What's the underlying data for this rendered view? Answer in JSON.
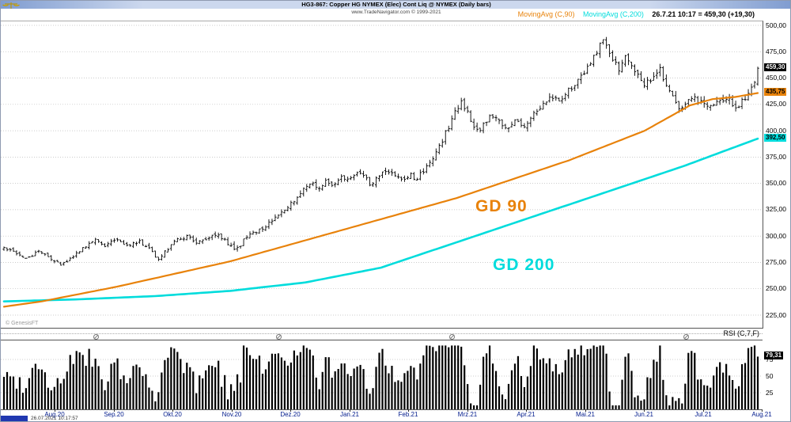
{
  "window": {
    "title": "HG3-867:  Copper HG NYMEX (Elec) Cont Liq @ NYMEX  (Daily bars)",
    "subtitle": "www.TradeNavigator.com © 1999-2021",
    "timestamp": "26.07.2021 10:17:57",
    "watermark": "© GenesisFT"
  },
  "legend": {
    "ma90_label": "MovingAvg (C,90)",
    "ma200_label": "MovingAvg (C,200)",
    "quote": "26.7.21 10:17 = 459,30  (+19,30)"
  },
  "annotations": {
    "gd90": "GD 90",
    "gd200": "GD 200"
  },
  "price_axis": {
    "labels": [
      "500,00",
      "475,00",
      "450,00",
      "425,00",
      "400,00",
      "375,00",
      "350,00",
      "325,00",
      "300,00",
      "275,00",
      "250,00",
      "225,00"
    ],
    "values": [
      500,
      475,
      450,
      425,
      400,
      375,
      350,
      325,
      300,
      275,
      250,
      225
    ],
    "last_price_label": "459,30",
    "ma90_price_label": "435,75",
    "ma200_price_label": "392,50"
  },
  "rsi": {
    "label": "RSI (C,7,F)",
    "axis_labels": [
      "75",
      "50",
      "25"
    ],
    "axis_values": [
      75,
      50,
      25
    ],
    "current_label": "79,31",
    "current_value": 79.31
  },
  "x_axis": {
    "labels": [
      "Aug.20",
      "Sep.20",
      "Okt.20",
      "Nov.20",
      "Dez.20",
      "Jan.21",
      "Feb.21",
      "Mrz.21",
      "Apr.21",
      "Mai.21",
      "Jun.21",
      "Jul.21",
      "Aug.21"
    ]
  },
  "colors": {
    "bars": "#000000",
    "ma90": "#e8820a",
    "ma200": "#00dcdc",
    "grid": "#bcbcbc",
    "last_box_bg": "#000000",
    "last_box_text": "#ffffff",
    "month_label": "#001a8c"
  },
  "chart_data": {
    "type": "ohlc-bar-with-overlays",
    "title": "Copper HG NYMEX (Elec) Cont Liq @ NYMEX, Daily bars",
    "x_range": [
      "Aug.20",
      "Aug.21"
    ],
    "price_axis_range": [
      225,
      500
    ],
    "bar_count": 240,
    "last_bar": {
      "date": "26.7.21 10:17",
      "close": 459.3,
      "change": 19.3
    },
    "series": [
      {
        "name": "Copper HG NYMEX daily OHLC",
        "type": "ohlc",
        "color": "#000000",
        "last": 459.3
      },
      {
        "name": "MovingAvg (C,90)",
        "type": "line",
        "color": "#e8820a",
        "last": 435.75
      },
      {
        "name": "MovingAvg (C,200)",
        "type": "line",
        "color": "#00dcdc",
        "last": 392.5
      },
      {
        "name": "RSI (C,7,F)",
        "type": "histogram",
        "range": [
          0,
          100
        ],
        "grid": [
          25,
          50,
          75
        ],
        "last": 79.31
      }
    ],
    "close_keypoints": [
      [
        0,
        288
      ],
      [
        0.015,
        284
      ],
      [
        0.03,
        278
      ],
      [
        0.045,
        286
      ],
      [
        0.06,
        280
      ],
      [
        0.075,
        272
      ],
      [
        0.09,
        279
      ],
      [
        0.105,
        288
      ],
      [
        0.12,
        296
      ],
      [
        0.135,
        291
      ],
      [
        0.15,
        298
      ],
      [
        0.165,
        290
      ],
      [
        0.18,
        295
      ],
      [
        0.193,
        287
      ],
      [
        0.205,
        278
      ],
      [
        0.218,
        289
      ],
      [
        0.23,
        296
      ],
      [
        0.243,
        300
      ],
      [
        0.256,
        293
      ],
      [
        0.27,
        299
      ],
      [
        0.283,
        303
      ],
      [
        0.295,
        294
      ],
      [
        0.307,
        287
      ],
      [
        0.32,
        297
      ],
      [
        0.335,
        305
      ],
      [
        0.35,
        311
      ],
      [
        0.363,
        318
      ],
      [
        0.376,
        327
      ],
      [
        0.388,
        337
      ],
      [
        0.398,
        345
      ],
      [
        0.408,
        351
      ],
      [
        0.418,
        345
      ],
      [
        0.428,
        353
      ],
      [
        0.438,
        349
      ],
      [
        0.448,
        357
      ],
      [
        0.458,
        352
      ],
      [
        0.468,
        360
      ],
      [
        0.478,
        355
      ],
      [
        0.488,
        349
      ],
      [
        0.498,
        357
      ],
      [
        0.508,
        363
      ],
      [
        0.518,
        358
      ],
      [
        0.528,
        352
      ],
      [
        0.538,
        358
      ],
      [
        0.548,
        355
      ],
      [
        0.558,
        363
      ],
      [
        0.568,
        373
      ],
      [
        0.578,
        386
      ],
      [
        0.588,
        401
      ],
      [
        0.597,
        416
      ],
      [
        0.606,
        428
      ],
      [
        0.614,
        419
      ],
      [
        0.622,
        407
      ],
      [
        0.63,
        398
      ],
      [
        0.638,
        408
      ],
      [
        0.648,
        416
      ],
      [
        0.658,
        406
      ],
      [
        0.668,
        400
      ],
      [
        0.678,
        409
      ],
      [
        0.688,
        403
      ],
      [
        0.698,
        412
      ],
      [
        0.708,
        418
      ],
      [
        0.718,
        426
      ],
      [
        0.728,
        433
      ],
      [
        0.738,
        427
      ],
      [
        0.748,
        438
      ],
      [
        0.758,
        446
      ],
      [
        0.768,
        453
      ],
      [
        0.778,
        463
      ],
      [
        0.787,
        475
      ],
      [
        0.794,
        487
      ],
      [
        0.801,
        477
      ],
      [
        0.808,
        466
      ],
      [
        0.816,
        459
      ],
      [
        0.823,
        470
      ],
      [
        0.831,
        463
      ],
      [
        0.841,
        452
      ],
      [
        0.851,
        444
      ],
      [
        0.861,
        453
      ],
      [
        0.869,
        459
      ],
      [
        0.876,
        449
      ],
      [
        0.883,
        439
      ],
      [
        0.89,
        426
      ],
      [
        0.897,
        416
      ],
      [
        0.906,
        426
      ],
      [
        0.916,
        431
      ],
      [
        0.926,
        427
      ],
      [
        0.936,
        422
      ],
      [
        0.946,
        429
      ],
      [
        0.954,
        426
      ],
      [
        0.962,
        431
      ],
      [
        0.97,
        419
      ],
      [
        0.978,
        427
      ],
      [
        0.986,
        433
      ],
      [
        0.993,
        441
      ],
      [
        1,
        459.3
      ]
    ],
    "ma90_keypoints": [
      [
        0,
        233
      ],
      [
        0.05,
        238
      ],
      [
        0.1,
        245
      ],
      [
        0.15,
        252
      ],
      [
        0.2,
        260
      ],
      [
        0.25,
        268
      ],
      [
        0.3,
        276
      ],
      [
        0.35,
        286
      ],
      [
        0.4,
        296
      ],
      [
        0.45,
        306
      ],
      [
        0.5,
        316
      ],
      [
        0.55,
        326
      ],
      [
        0.6,
        336
      ],
      [
        0.65,
        348
      ],
      [
        0.7,
        360
      ],
      [
        0.75,
        372
      ],
      [
        0.8,
        386
      ],
      [
        0.85,
        400
      ],
      [
        0.88,
        412
      ],
      [
        0.91,
        424
      ],
      [
        0.94,
        430
      ],
      [
        0.97,
        432
      ],
      [
        1,
        435.75
      ]
    ],
    "ma200_keypoints": [
      [
        0,
        238
      ],
      [
        0.1,
        240
      ],
      [
        0.2,
        243
      ],
      [
        0.3,
        248
      ],
      [
        0.4,
        256
      ],
      [
        0.5,
        270
      ],
      [
        0.6,
        294
      ],
      [
        0.7,
        318
      ],
      [
        0.8,
        342
      ],
      [
        0.9,
        366
      ],
      [
        1,
        392.5
      ]
    ],
    "separator_marker_positions": [
      0.125,
      0.364,
      0.592,
      0.899
    ]
  }
}
